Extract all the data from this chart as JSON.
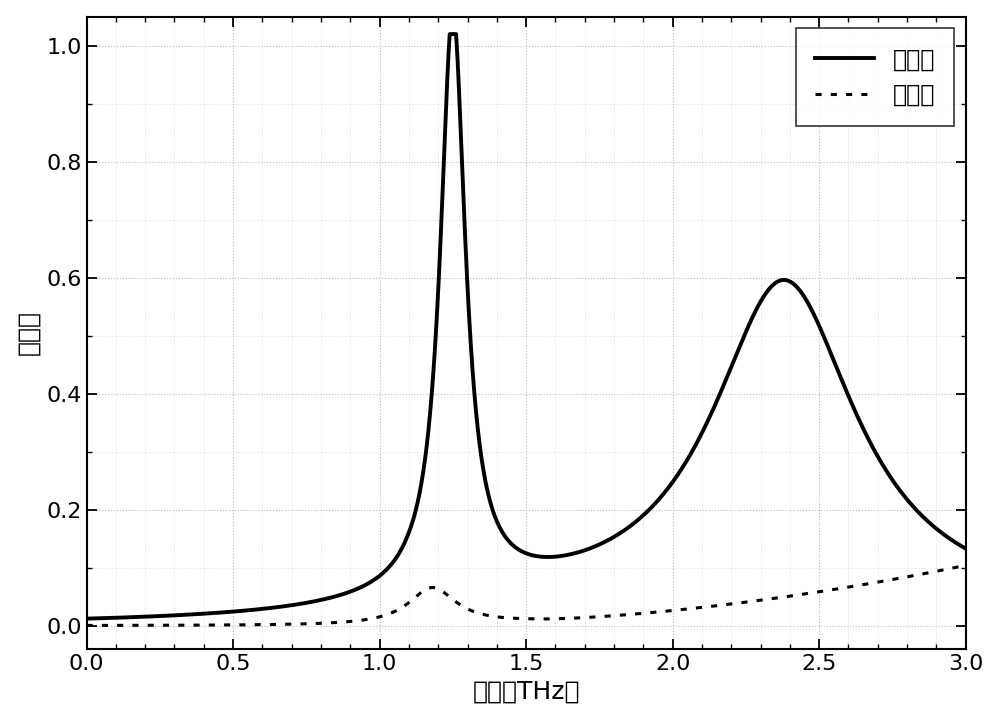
{
  "title": "",
  "xlabel": "频率（THz）",
  "ylabel": "吸收率",
  "xlim": [
    0.0,
    3.0
  ],
  "ylim": [
    -0.04,
    1.05
  ],
  "xticks": [
    0.0,
    0.5,
    1.0,
    1.5,
    2.0,
    2.5,
    3.0
  ],
  "yticks": [
    0.0,
    0.2,
    0.4,
    0.6,
    0.8,
    1.0
  ],
  "legend_labels": [
    "金属相",
    "绝缘相"
  ],
  "line1_color": "#000000",
  "line2_color": "#000000",
  "background_color": "#ffffff",
  "grid_color": "#bbbbbb"
}
